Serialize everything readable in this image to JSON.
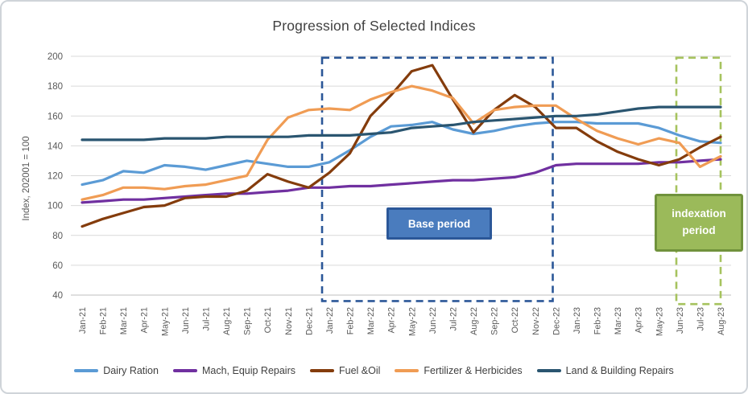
{
  "title": "Progression of Selected Indices",
  "y_axis_title": "Index, 202001 = 100",
  "chart_data": {
    "type": "line",
    "x": [
      "Jan-21",
      "Feb-21",
      "Mar-21",
      "Apr-21",
      "May-21",
      "Jun-21",
      "Jul-21",
      "Aug-21",
      "Sep-21",
      "Oct-21",
      "Nov-21",
      "Dec-21",
      "Jan-22",
      "Feb-22",
      "Mar-22",
      "Apr-22",
      "May-22",
      "Jun-22",
      "Jul-22",
      "Aug-22",
      "Sep-22",
      "Oct-22",
      "Nov-22",
      "Dec-22",
      "Jan-23",
      "Feb-23",
      "Mar-23",
      "Apr-23",
      "May-23",
      "Jun-23",
      "Jul-23",
      "Aug-23"
    ],
    "ylim": [
      40,
      200
    ],
    "yticks": [
      40,
      60,
      80,
      100,
      120,
      140,
      160,
      180,
      200
    ],
    "grid": true,
    "legend_position": "bottom",
    "series": [
      {
        "name": "Dairy Ration",
        "color": "#5B9BD5",
        "values": [
          114,
          117,
          123,
          122,
          127,
          126,
          124,
          127,
          130,
          128,
          126,
          126,
          129,
          137,
          146,
          153,
          154,
          156,
          151,
          148,
          150,
          153,
          155,
          156,
          156,
          155,
          155,
          155,
          152,
          147,
          143,
          142
        ]
      },
      {
        "name": "Mach, Equip Repairs",
        "color": "#7030A0",
        "values": [
          102,
          103,
          104,
          104,
          105,
          106,
          107,
          108,
          108,
          109,
          110,
          112,
          112,
          113,
          113,
          114,
          115,
          116,
          117,
          117,
          118,
          119,
          122,
          127,
          128,
          128,
          128,
          128,
          129,
          129,
          130,
          131
        ]
      },
      {
        "name": "Fuel &Oil",
        "color": "#843C0C",
        "values": [
          86,
          91,
          95,
          99,
          100,
          105,
          106,
          106,
          110,
          121,
          116,
          112,
          122,
          135,
          160,
          174,
          190,
          194,
          171,
          149,
          164,
          174,
          166,
          152,
          152,
          143,
          136,
          131,
          127,
          131,
          139,
          146
        ]
      },
      {
        "name": "Fertilizer & Herbicides",
        "color": "#F09C54",
        "values": [
          104,
          107,
          112,
          112,
          111,
          113,
          114,
          117,
          120,
          144,
          159,
          164,
          165,
          164,
          171,
          176,
          180,
          177,
          172,
          155,
          164,
          166,
          167,
          167,
          158,
          150,
          145,
          141,
          145,
          142,
          126,
          133
        ]
      },
      {
        "name": "Land & Building Repairs",
        "color": "#2A5570",
        "values": [
          144,
          144,
          144,
          144,
          145,
          145,
          145,
          146,
          146,
          146,
          146,
          147,
          147,
          147,
          148,
          149,
          152,
          153,
          154,
          156,
          157,
          158,
          159,
          160,
          160,
          161,
          163,
          165,
          166,
          166,
          166,
          166
        ]
      }
    ],
    "annotations": [
      {
        "id": "base-period",
        "label": "Base period",
        "x_from": "Jan-22",
        "x_to": "Dec-22",
        "x1_idx": 11.65,
        "x2_idx": 22.85,
        "y1_val": 36,
        "y2_val": 199,
        "dash_color": "#2B5798",
        "box_fill": "#4A7CBE",
        "box_border": "#2B5798",
        "text_color": "#FFFFFF"
      },
      {
        "id": "indexation-period",
        "label": "indexation period",
        "x_from": "Jun-23",
        "x_to": "Aug-23",
        "x1_idx": 28.85,
        "x2_idx": 31.0,
        "y1_val": 34,
        "y2_val": 199,
        "dash_color": "#A6C35E",
        "box_fill": "#9BBA5A",
        "box_border": "#70923C",
        "text_color": "#FFFFFF"
      }
    ],
    "colors": {
      "gridline": "#D9D9D9",
      "axis_line": "#BFBFBF",
      "tick_text": "#595959",
      "title_text": "#404040"
    }
  }
}
